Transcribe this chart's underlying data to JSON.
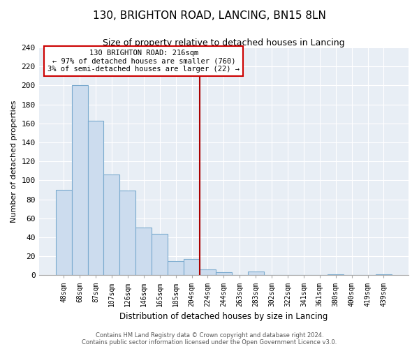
{
  "title": "130, BRIGHTON ROAD, LANCING, BN15 8LN",
  "subtitle": "Size of property relative to detached houses in Lancing",
  "xlabel": "Distribution of detached houses by size in Lancing",
  "ylabel": "Number of detached properties",
  "bar_labels": [
    "48sqm",
    "68sqm",
    "87sqm",
    "107sqm",
    "126sqm",
    "146sqm",
    "165sqm",
    "185sqm",
    "204sqm",
    "224sqm",
    "244sqm",
    "263sqm",
    "283sqm",
    "302sqm",
    "322sqm",
    "341sqm",
    "361sqm",
    "380sqm",
    "400sqm",
    "419sqm",
    "439sqm"
  ],
  "bar_values": [
    90,
    200,
    163,
    106,
    89,
    50,
    44,
    15,
    17,
    6,
    3,
    0,
    4,
    0,
    0,
    0,
    0,
    1,
    0,
    0,
    1
  ],
  "bar_color": "#ccdcee",
  "bar_edge_color": "#7aaace",
  "vline_x_index": 9.0,
  "vline_color": "#aa0000",
  "annotation_line1": "130 BRIGHTON ROAD: 216sqm",
  "annotation_line2": "← 97% of detached houses are smaller (760)",
  "annotation_line3": "3% of semi-detached houses are larger (22) →",
  "annotation_box_color": "#ffffff",
  "annotation_box_edge": "#cc0000",
  "ylim": [
    0,
    240
  ],
  "yticks": [
    0,
    20,
    40,
    60,
    80,
    100,
    120,
    140,
    160,
    180,
    200,
    220,
    240
  ],
  "footer_line1": "Contains HM Land Registry data © Crown copyright and database right 2024.",
  "footer_line2": "Contains public sector information licensed under the Open Government Licence v3.0.",
  "bg_color": "#ffffff",
  "plot_bg_color": "#e8eef5",
  "grid_color": "#ffffff"
}
